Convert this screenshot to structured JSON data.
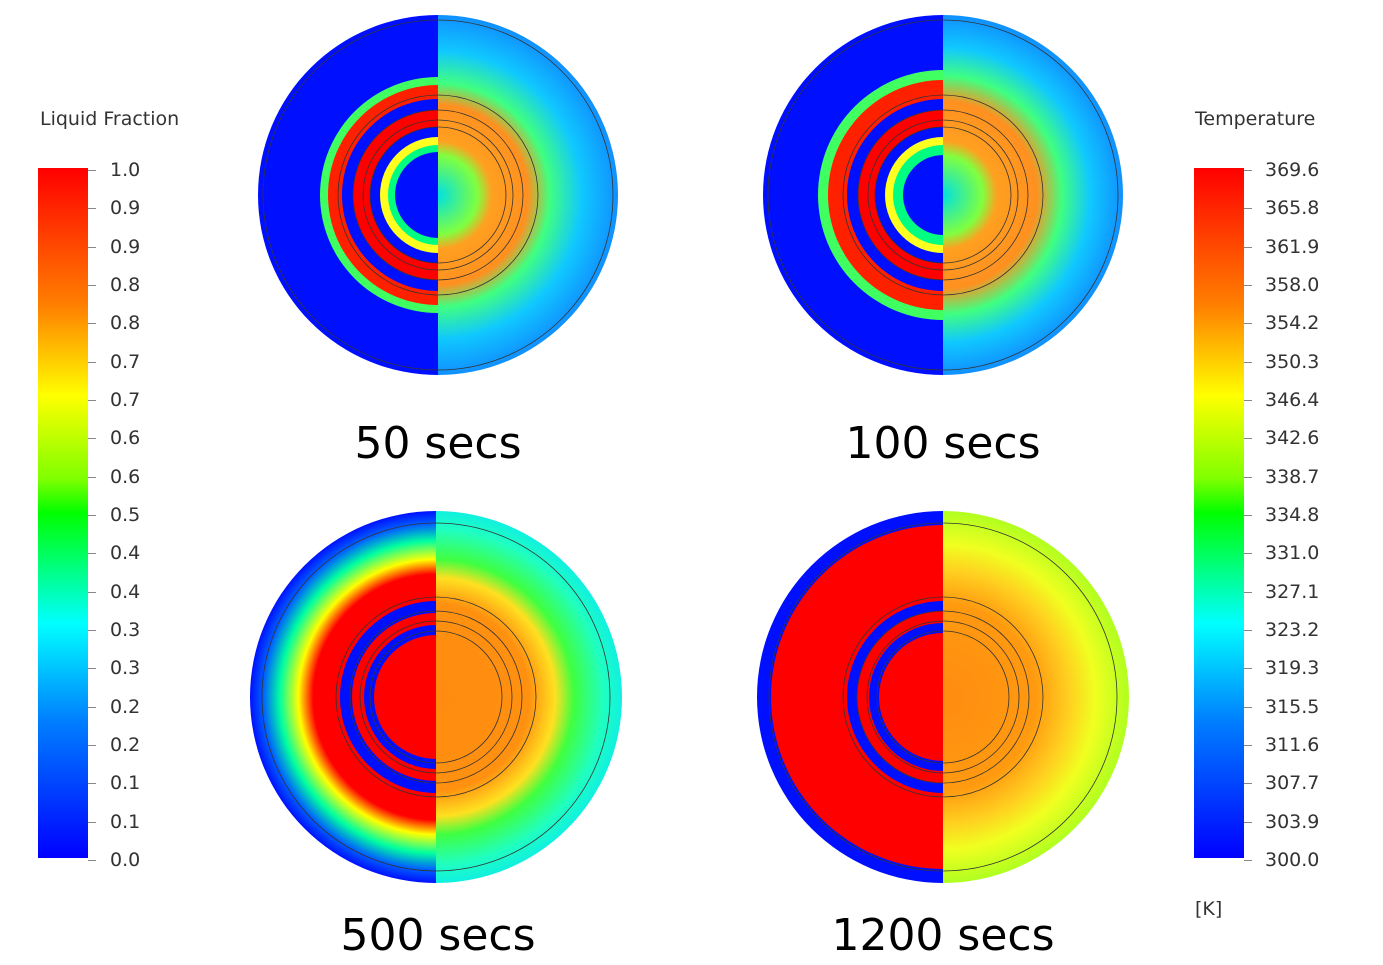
{
  "liquid_fraction_legend": {
    "title": "Liquid Fraction",
    "ticks": [
      "1.0",
      "0.9",
      "0.9",
      "0.8",
      "0.8",
      "0.7",
      "0.7",
      "0.6",
      "0.6",
      "0.5",
      "0.4",
      "0.4",
      "0.3",
      "0.3",
      "0.2",
      "0.2",
      "0.1",
      "0.1",
      "0.0"
    ],
    "colors": {
      "top": "#ff0000",
      "bottom": "#0000ff"
    }
  },
  "temperature_legend": {
    "title": "Temperature",
    "ticks": [
      "369.6",
      "365.8",
      "361.9",
      "358.0",
      "354.2",
      "350.3",
      "346.4",
      "342.6",
      "338.7",
      "334.8",
      "331.0",
      "327.1",
      "323.2",
      "319.3",
      "315.5",
      "311.6",
      "307.7",
      "303.9",
      "300.0"
    ],
    "unit": "[K]"
  },
  "panels": [
    {
      "label": "50 secs",
      "left_fraction": "low",
      "right_temp": "moderate"
    },
    {
      "label": "100 secs",
      "left_fraction": "low",
      "right_temp": "moderate"
    },
    {
      "label": "500 secs",
      "left_fraction": "mostly melted",
      "right_temp": "warm"
    },
    {
      "label": "1200 secs",
      "left_fraction": "melted",
      "right_temp": "hot"
    }
  ]
}
